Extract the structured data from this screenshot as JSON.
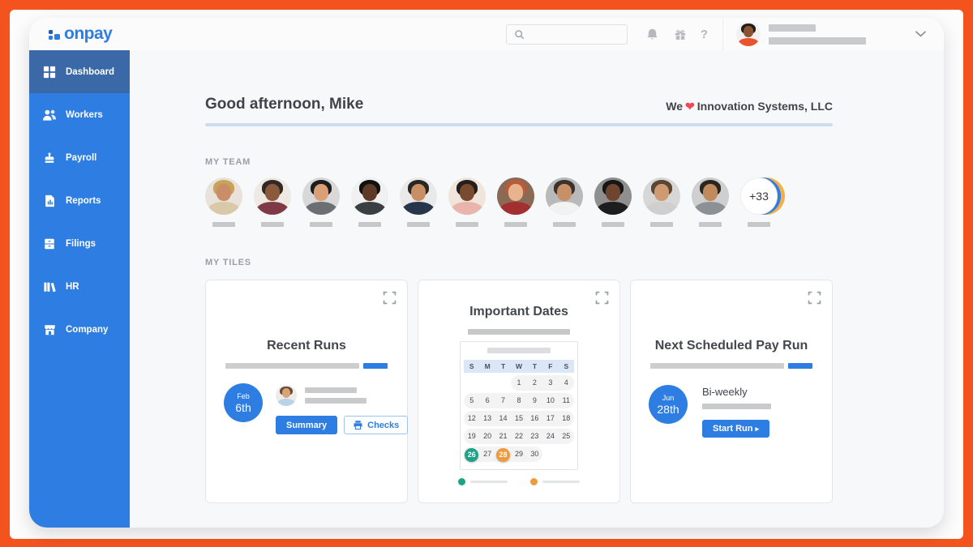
{
  "topbar": {
    "logo_text": "onpay",
    "search_placeholder": "",
    "help_label": "?",
    "user_avatar": {
      "bg": "#f1f1f1",
      "hair": "#221c19",
      "skin": "#8a5433",
      "shirt": "#e8542f"
    }
  },
  "sidebar": {
    "items": [
      {
        "label": "Dashboard",
        "icon": "dashboard-grid",
        "active": true
      },
      {
        "label": "Workers",
        "icon": "workers-people",
        "active": false
      },
      {
        "label": "Payroll",
        "icon": "payroll-stamp",
        "active": false
      },
      {
        "label": "Reports",
        "icon": "reports-document",
        "active": false
      },
      {
        "label": "Filings",
        "icon": "filings-cabinet",
        "active": false
      },
      {
        "label": "HR",
        "icon": "hr-books",
        "active": false
      },
      {
        "label": "Company",
        "icon": "company-storefront",
        "active": false
      }
    ]
  },
  "greeting": {
    "title": "Good afternoon, Mike",
    "company_prefix": "We",
    "heart": "❤",
    "company_name": "Innovation Systems, LLC"
  },
  "my_team": {
    "label": "MY TEAM",
    "more_count": "+33",
    "avatars": [
      {
        "bg": "#e8e2da",
        "hair": "#c9a15a",
        "skin": "#c98e68",
        "shirt": "#d9c9a8"
      },
      {
        "bg": "#efe9e4",
        "hair": "#2f2a28",
        "skin": "#8a5a3b",
        "shirt": "#7e3b45"
      },
      {
        "bg": "#d8d8d8",
        "hair": "#1d1d1d",
        "skin": "#d9a077",
        "shirt": "#6b6f73"
      },
      {
        "bg": "#f0f0f0",
        "hair": "#111111",
        "skin": "#5f3a27",
        "shirt": "#3a3f44"
      },
      {
        "bg": "#e9e9e9",
        "hair": "#2a2623",
        "skin": "#c78f63",
        "shirt": "#27364a"
      },
      {
        "bg": "#efe5da",
        "hair": "#241f1e",
        "skin": "#7a4a2e",
        "shirt": "#e8b4ac"
      },
      {
        "bg": "#8a6a55",
        "hair": "#b85c3a",
        "skin": "#e8b48e",
        "shirt": "#a33030"
      },
      {
        "bg": "#b9b9b9",
        "hair": "#3a332d",
        "skin": "#c79067",
        "shirt": "#f2f2f2"
      },
      {
        "bg": "#8f8f8f",
        "hair": "#161616",
        "skin": "#6f4530",
        "shirt": "#1d1d1d"
      },
      {
        "bg": "#d7d7d7",
        "hair": "#5a4632",
        "skin": "#cf9a72",
        "shirt": "#cfcfcf"
      },
      {
        "bg": "#cfcfcf",
        "hair": "#2c2620",
        "skin": "#c08a5c",
        "shirt": "#8c9196"
      }
    ]
  },
  "my_tiles": {
    "label": "MY TILES"
  },
  "recent_runs": {
    "title": "Recent Runs",
    "date_month": "Feb",
    "date_day": "6th",
    "summary_button": "Summary",
    "checks_button": "Checks",
    "person_avatar": {
      "bg": "#ececec",
      "hair": "#6d4a33",
      "skin": "#d8a378",
      "shirt": "#b9d2e8"
    }
  },
  "important_dates": {
    "title": "Important Dates",
    "weekday_headers": [
      "S",
      "M",
      "T",
      "W",
      "T",
      "F",
      "S"
    ],
    "weeks": [
      [
        "",
        "",
        "",
        "1",
        "2",
        "3",
        "4"
      ],
      [
        "5",
        "6",
        "7",
        "8",
        "9",
        "10",
        "11"
      ],
      [
        "12",
        "13",
        "14",
        "15",
        "16",
        "17",
        "18"
      ],
      [
        "19",
        "20",
        "21",
        "22",
        "23",
        "24",
        "25"
      ],
      [
        "26",
        "27",
        "28",
        "29",
        "30",
        "",
        ""
      ]
    ],
    "highlights": {
      "26": "#1ca386",
      "28": "#f09a3e"
    },
    "legend": [
      {
        "color": "#1ca386"
      },
      {
        "color": "#f09a3e"
      }
    ]
  },
  "next_pay_run": {
    "title": "Next Scheduled Pay Run",
    "date_month": "Jun",
    "date_day": "28th",
    "frequency": "Bi-weekly",
    "start_button": "Start Run",
    "start_arrow": "▸"
  },
  "colors": {
    "frame_orange": "#f4531e",
    "primary_blue": "#2e7de2",
    "sidebar_active_blue": "#3b68a6",
    "heart_red": "#ef4956",
    "event_teal": "#1ca386",
    "event_orange": "#f09a3e"
  }
}
